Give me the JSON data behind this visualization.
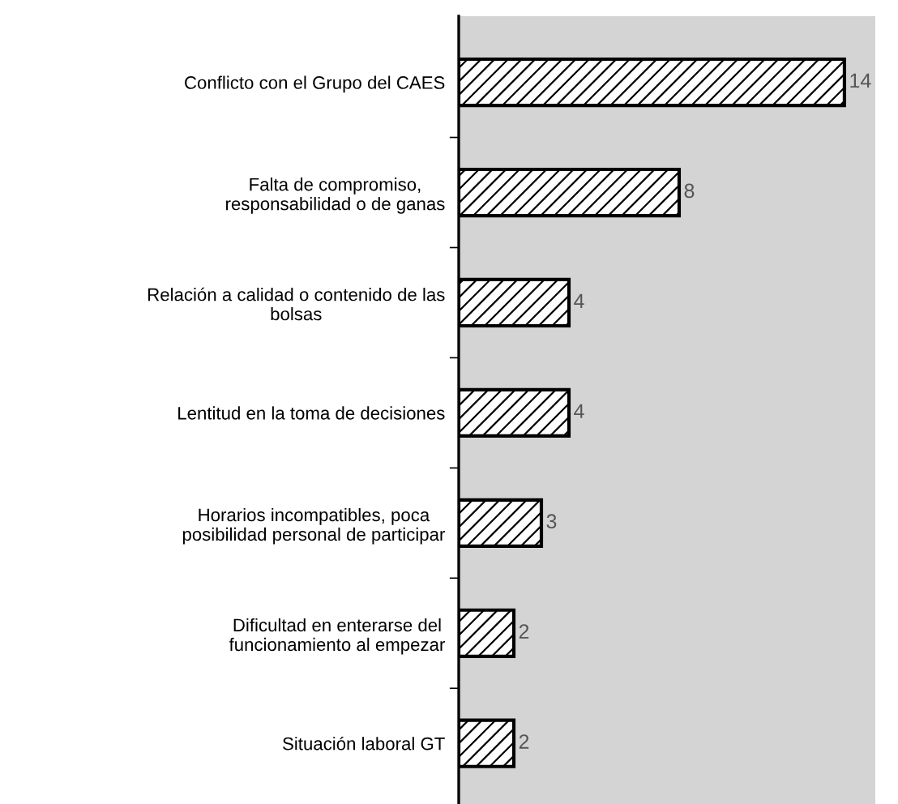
{
  "chart_data": {
    "type": "bar",
    "orientation": "horizontal",
    "categories": [
      "Conflicto con el Grupo del CAES",
      "Falta de compromiso,\nresponsabilidad o de ganas",
      "Relación a calidad o contenido de las\nbolsas",
      "Lentitud en la toma de decisiones",
      "Horarios incompatibles, poca\nposibilidad personal de participar",
      "Dificultad en enterarse del\nfuncionamiento al empezar",
      "Situación laboral GT"
    ],
    "values": [
      14,
      8,
      4,
      4,
      3,
      2,
      2
    ],
    "color": "#000000",
    "data_labels": true,
    "grid": false,
    "legend": false
  }
}
